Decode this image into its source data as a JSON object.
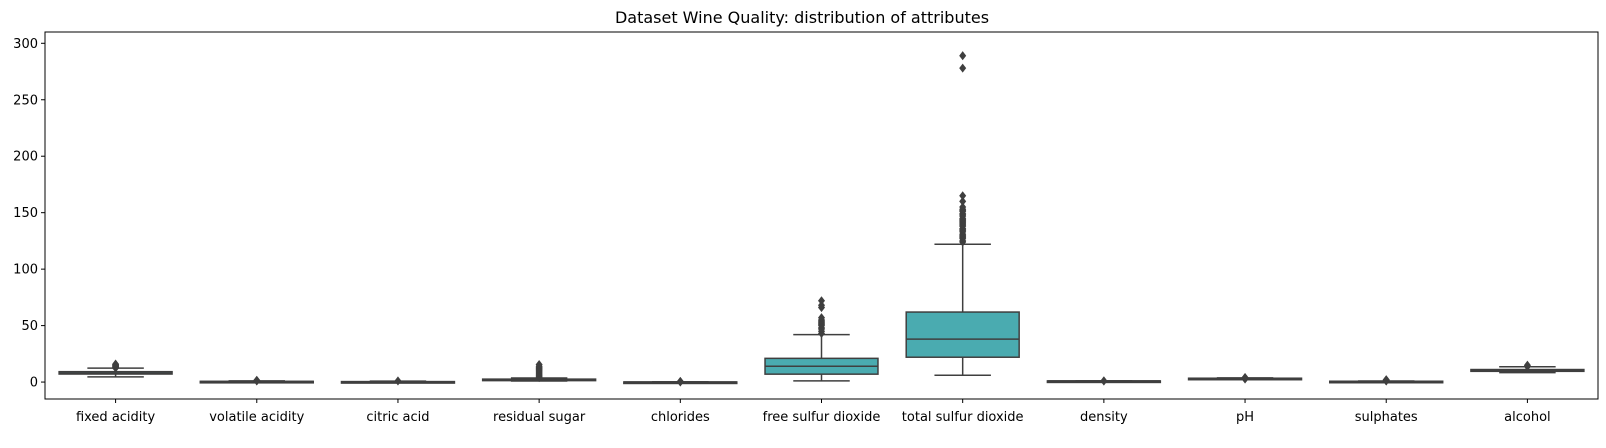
{
  "chart_data": {
    "type": "box",
    "title": "Dataset Wine Quality: distribution of attributes",
    "xlabel": "",
    "ylabel": "",
    "ylim": [
      -15,
      310
    ],
    "yticks": [
      0,
      50,
      100,
      150,
      200,
      250,
      300
    ],
    "grid": false,
    "categories": [
      "fixed acidity",
      "volatile acidity",
      "citric acid",
      "residual sugar",
      "chlorides",
      "free sulfur dioxide",
      "total sulfur dioxide",
      "density",
      "pH",
      "sulphates",
      "alcohol"
    ],
    "boxes": [
      {
        "whisker_low": 4.6,
        "q1": 7.1,
        "median": 7.9,
        "q3": 9.2,
        "whisker_high": 12.3,
        "outliers": [
          12.5,
          13.0,
          13.5,
          14.0,
          14.5,
          15.0,
          15.6,
          15.9
        ]
      },
      {
        "whisker_low": 0.12,
        "q1": 0.39,
        "median": 0.52,
        "q3": 0.64,
        "whisker_high": 1.01,
        "outliers": [
          1.04,
          1.1,
          1.2,
          1.33,
          1.58
        ]
      },
      {
        "whisker_low": 0.0,
        "q1": 0.09,
        "median": 0.26,
        "q3": 0.42,
        "whisker_high": 0.79,
        "outliers": [
          1.0
        ]
      },
      {
        "whisker_low": 0.9,
        "q1": 1.9,
        "median": 2.2,
        "q3": 2.6,
        "whisker_high": 3.6,
        "outliers": [
          4.0,
          5.0,
          6.0,
          7.0,
          8.0,
          9.0,
          10.0,
          11.0,
          12.0,
          13.0,
          14.0,
          15.5
        ]
      },
      {
        "whisker_low": 0.04,
        "q1": 0.07,
        "median": 0.079,
        "q3": 0.09,
        "whisker_high": 0.12,
        "outliers": [
          0.15,
          0.25,
          0.4,
          0.61
        ]
      },
      {
        "whisker_low": 1,
        "q1": 7,
        "median": 14,
        "q3": 21,
        "whisker_high": 42,
        "outliers": [
          43,
          45,
          47,
          48,
          50,
          51,
          52,
          53,
          54,
          55,
          57,
          66,
          68,
          72
        ]
      },
      {
        "whisker_low": 6,
        "q1": 22,
        "median": 38,
        "q3": 62,
        "whisker_high": 122,
        "outliers": [
          124,
          125,
          127,
          128,
          129,
          130,
          131,
          133,
          134,
          135,
          136,
          138,
          139,
          140,
          141,
          142,
          143,
          144,
          145,
          147,
          148,
          149,
          151,
          152,
          153,
          155,
          160,
          165,
          278,
          289
        ]
      },
      {
        "whisker_low": 0.99,
        "q1": 0.9956,
        "median": 0.9968,
        "q3": 0.9978,
        "whisker_high": 1.001,
        "outliers": [
          0.99,
          1.003
        ]
      },
      {
        "whisker_low": 2.92,
        "q1": 3.21,
        "median": 3.31,
        "q3": 3.4,
        "whisker_high": 3.68,
        "outliers": [
          2.74,
          2.86,
          3.69,
          3.75,
          3.85,
          4.01
        ]
      },
      {
        "whisker_low": 0.33,
        "q1": 0.55,
        "median": 0.62,
        "q3": 0.73,
        "whisker_high": 0.99,
        "outliers": [
          1.02,
          1.1,
          1.2,
          1.36,
          1.59,
          1.95,
          2.0
        ]
      },
      {
        "whisker_low": 8.4,
        "q1": 9.5,
        "median": 10.2,
        "q3": 11.1,
        "whisker_high": 13.6,
        "outliers": [
          13.8,
          14.0,
          14.9
        ]
      }
    ],
    "colors": {
      "box_fill": "#4aabb0",
      "line": "#3f3f3f",
      "outlier": "#3f3f3f",
      "axes": "#000000"
    }
  }
}
